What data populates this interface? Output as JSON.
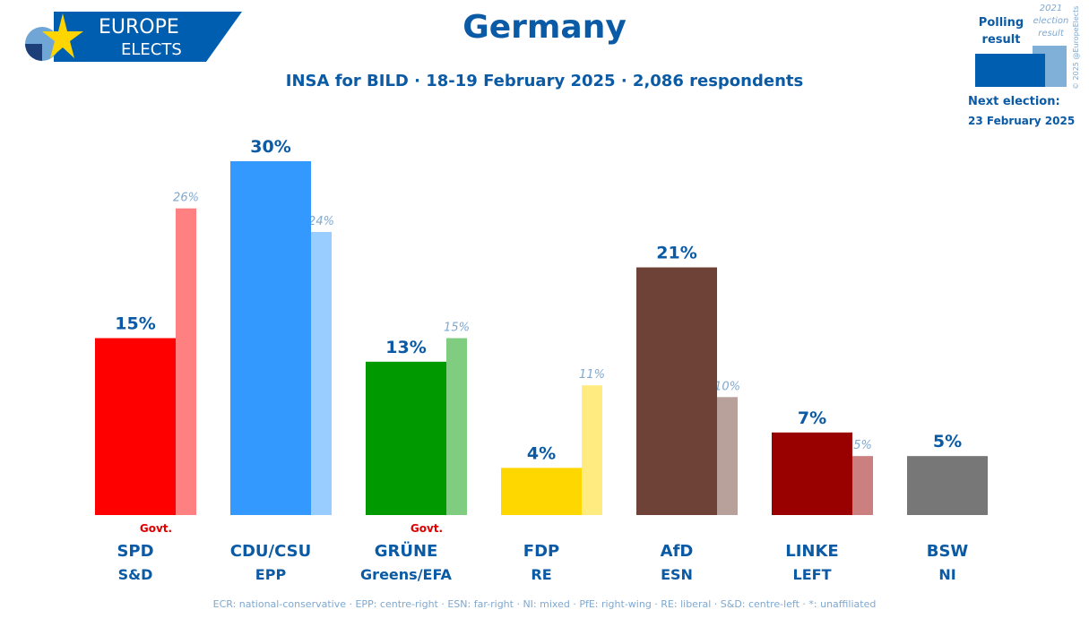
{
  "header": {
    "logo_text_1": "EUROPE",
    "logo_text_2": "ELECTS",
    "title": "Germany",
    "subtitle": "INSA for BILD · 18-19 February 2025 · 2,086 respondents"
  },
  "legend": {
    "polling": "Polling result",
    "previous": "2021 election result",
    "next_election_label": "Next election:",
    "next_election_date": "23 February 2025",
    "copyright": "© 2025 @EuropeElects"
  },
  "footer": "ECR: national-conservative · EPP: centre-right · ESN: far-right · NI: mixed · PfE: right-wing · RE: liberal · S&D: centre-left · *: unaffiliated",
  "chart_data": {
    "type": "bar",
    "title": "Germany",
    "ylabel": "",
    "xlabel": "",
    "ylim": [
      0,
      30
    ],
    "categories": [
      "SPD",
      "CDU/CSU",
      "GRÜNE",
      "FDP",
      "AfD",
      "LINKE",
      "BSW"
    ],
    "groups": [
      "S&D",
      "EPP",
      "Greens/EFA",
      "RE",
      "ESN",
      "LEFT",
      "NI"
    ],
    "government": [
      true,
      false,
      true,
      false,
      false,
      false,
      false
    ],
    "govt_label": "Govt.",
    "series": [
      {
        "name": "Polling result",
        "values": [
          15,
          30,
          13,
          4,
          21,
          7,
          5
        ]
      },
      {
        "name": "2021 election result",
        "values": [
          26,
          24,
          15,
          11,
          10,
          5,
          null
        ]
      }
    ],
    "colors": [
      "#ff0000",
      "#3399ff",
      "#009900",
      "#ffd700",
      "#6f4238",
      "#990000",
      "#777777"
    ],
    "colors_prev": [
      "#ff8080",
      "#99ccff",
      "#80cc80",
      "#ffeb80",
      "#b8a09b",
      "#cc7f7f",
      "#bbbbbb"
    ]
  }
}
